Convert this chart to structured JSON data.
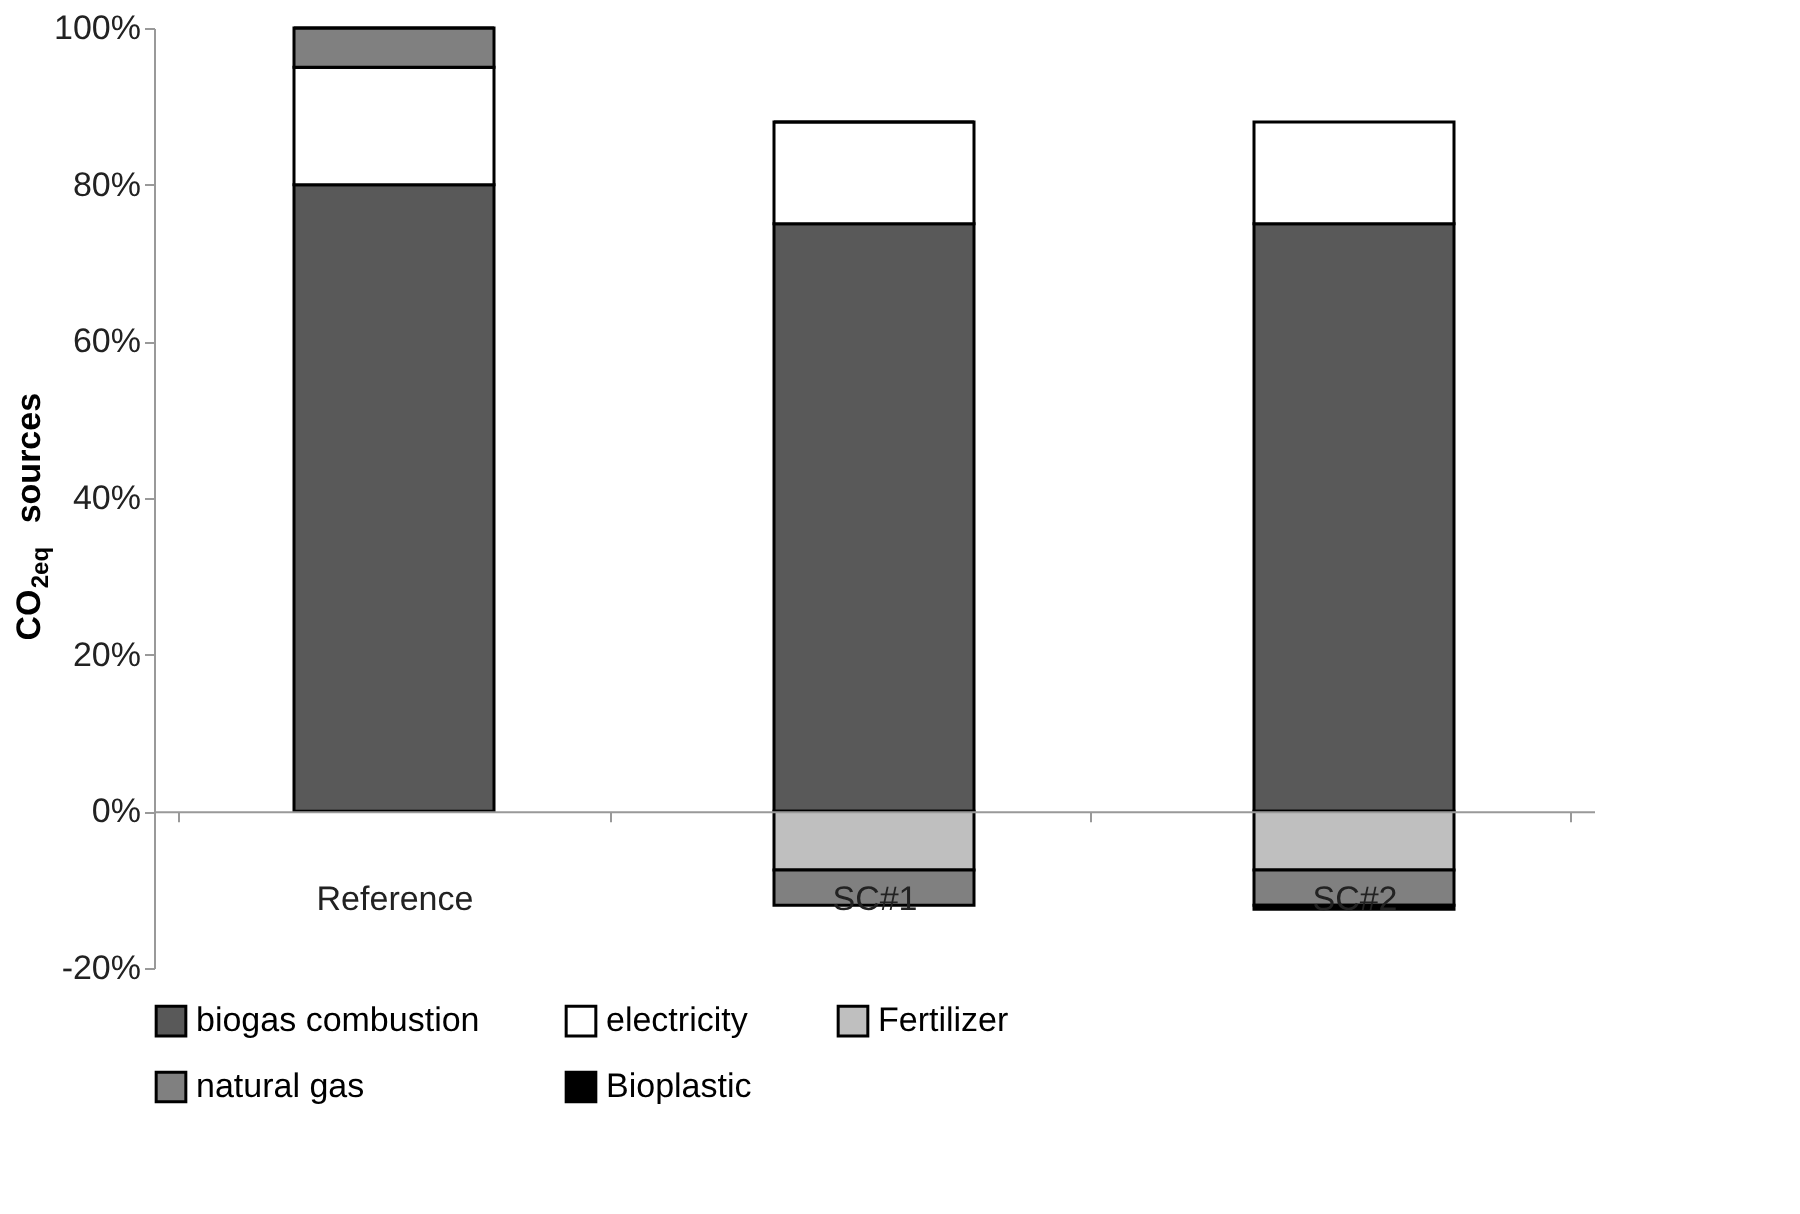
{
  "chart_data": {
    "type": "bar",
    "stacked": true,
    "ylabel": "CO$_{2eq}$ sources",
    "categories": [
      "Reference",
      "SC#1",
      "SC#2"
    ],
    "series": [
      {
        "name": "biogas combustion",
        "color": "#595959",
        "values": [
          80,
          75,
          75
        ]
      },
      {
        "name": "electricity",
        "color": "#ffffff",
        "values": [
          15,
          13,
          13
        ]
      },
      {
        "name": "Fertilizer",
        "color": "#bfbfbf",
        "values": [
          0,
          -7.5,
          -7.5
        ]
      },
      {
        "name": "natural gas",
        "color": "#808080",
        "values": [
          5,
          -4.5,
          -4.5
        ]
      },
      {
        "name": "Bioplastic",
        "color": "#000000",
        "values": [
          0,
          0,
          -0.5
        ]
      }
    ],
    "ylim": [
      -20,
      100
    ],
    "yticks": [
      {
        "value": -20,
        "label": "-20%"
      },
      {
        "value": 0,
        "label": "0%"
      },
      {
        "value": 20,
        "label": "20%"
      },
      {
        "value": 40,
        "label": "40%"
      },
      {
        "value": 60,
        "label": "60%"
      },
      {
        "value": 80,
        "label": "80%"
      },
      {
        "value": 100,
        "label": "100%"
      }
    ],
    "grid": false,
    "legend": "bottom"
  }
}
